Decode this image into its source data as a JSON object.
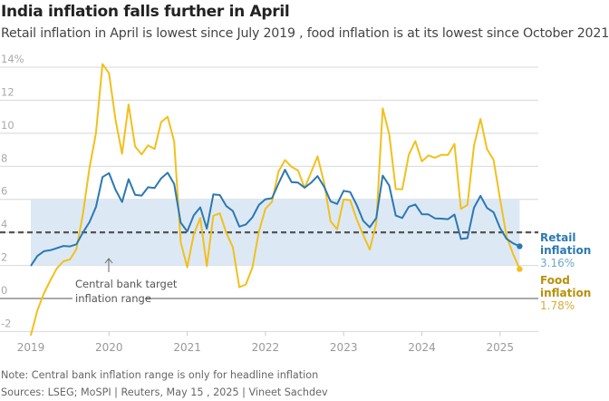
{
  "title": "India inflation falls further in April",
  "subtitle": "Retail inflation in April is lowest since July 2019 , food inflation is at its lowest since October 2021",
  "note": "Note: Central bank inflation range is only for headline inflation",
  "source": "Sources: LSEG; MoSPI | Reuters, May 15 , 2025 | Vineet Sachdev",
  "colors": {
    "retail": "#2b78b4",
    "food": "#f2c01c",
    "band": "#dce9f5",
    "food_label": "#b8900a"
  },
  "chart_data": {
    "type": "line",
    "title": "India inflation falls further in April",
    "x_start": "2019-01",
    "x_frequency": "monthly",
    "x_ticks": [
      "2019",
      "2020",
      "2021",
      "2022",
      "2023",
      "2024",
      "2025"
    ],
    "y_ticks": [
      "-2",
      "0",
      "2",
      "4",
      "6",
      "8",
      "10",
      "12",
      "14%"
    ],
    "ylim": [
      -2,
      14
    ],
    "grid": true,
    "target_band": {
      "label_line1": "Central bank target",
      "label_line2": "inflation range",
      "range": [
        2,
        6
      ],
      "midpoint": 4
    },
    "series": [
      {
        "name": "Retail inflation",
        "end_label": "3.16%",
        "values": [
          1.97,
          2.57,
          2.86,
          2.92,
          3.05,
          3.18,
          3.15,
          3.28,
          3.99,
          4.62,
          5.54,
          7.35,
          7.59,
          6.58,
          5.84,
          7.22,
          6.27,
          6.23,
          6.73,
          6.69,
          7.27,
          7.61,
          6.93,
          4.59,
          4.06,
          5.03,
          5.52,
          4.23,
          6.3,
          6.26,
          5.59,
          5.3,
          4.35,
          4.48,
          4.91,
          5.66,
          6.01,
          6.07,
          6.95,
          7.79,
          7.04,
          7.01,
          6.71,
          7.0,
          7.41,
          6.77,
          5.88,
          5.72,
          6.52,
          6.44,
          5.66,
          4.7,
          4.31,
          4.87,
          7.44,
          6.83,
          5.02,
          4.87,
          5.55,
          5.69,
          5.1,
          5.09,
          4.85,
          4.83,
          4.8,
          5.08,
          3.6,
          3.65,
          5.49,
          6.21,
          5.48,
          5.22,
          4.26,
          3.61,
          3.34,
          3.16
        ]
      },
      {
        "name": "Food inflation",
        "end_label": "1.78%",
        "values": [
          -2.24,
          -0.73,
          0.3,
          1.1,
          1.83,
          2.25,
          2.36,
          2.99,
          5.11,
          7.89,
          10.01,
          14.19,
          13.63,
          10.81,
          8.76,
          11.74,
          9.2,
          8.72,
          9.27,
          9.05,
          10.68,
          11.0,
          9.5,
          3.41,
          1.89,
          3.87,
          4.87,
          1.96,
          5.01,
          5.15,
          3.96,
          3.11,
          0.68,
          0.85,
          1.87,
          4.05,
          5.43,
          5.85,
          7.68,
          8.38,
          7.97,
          7.75,
          6.69,
          7.62,
          8.6,
          7.01,
          4.67,
          4.19,
          6.0,
          5.95,
          4.79,
          3.84,
          2.96,
          4.55,
          11.51,
          9.94,
          6.62,
          6.61,
          8.7,
          9.53,
          8.3,
          8.66,
          8.52,
          8.7,
          8.69,
          9.36,
          5.42,
          5.66,
          9.24,
          10.87,
          9.04,
          8.39,
          6.02,
          3.75,
          2.69,
          1.78
        ]
      }
    ]
  }
}
